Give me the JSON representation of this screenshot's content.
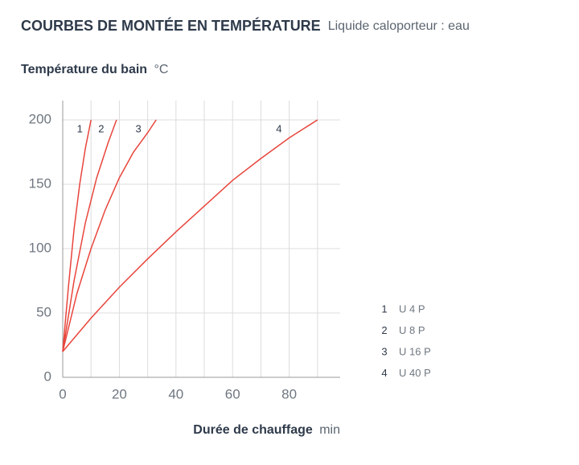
{
  "chart_data": {
    "type": "line",
    "title": "COURBES DE MONTÉE EN TEMPÉRATURE",
    "subtitle": "Liquide caloporteur : eau",
    "y_label": "Température du bain",
    "y_unit": "°C",
    "x_label": "Durée de chauffage",
    "x_unit": "min",
    "xlim": [
      0,
      98
    ],
    "xticks": [
      0,
      20,
      40,
      60,
      80
    ],
    "x_minor_ticks": [
      10,
      30,
      50,
      70,
      90
    ],
    "ylim": [
      0,
      215
    ],
    "yticks": [
      0,
      50,
      100,
      150,
      200
    ],
    "grid": true,
    "series": [
      {
        "label": "1",
        "name": "U 4 P",
        "color": "#e8453c",
        "x": [
          0,
          2,
          4,
          6,
          8,
          10
        ],
        "values": [
          20,
          70,
          115,
          150,
          178,
          200
        ]
      },
      {
        "label": "2",
        "name": "U 8 P",
        "color": "#e8453c",
        "x": [
          0,
          4,
          8,
          12,
          16,
          19
        ],
        "values": [
          20,
          75,
          120,
          155,
          182,
          200
        ]
      },
      {
        "label": "3",
        "name": "U 16 P",
        "color": "#e8453c",
        "x": [
          0,
          5,
          10,
          15,
          20,
          25,
          30,
          33
        ],
        "values": [
          20,
          65,
          100,
          130,
          155,
          175,
          190,
          200
        ]
      },
      {
        "label": "4",
        "name": "U 40 P",
        "color": "#e8453c",
        "x": [
          0,
          10,
          20,
          30,
          40,
          50,
          60,
          70,
          80,
          90
        ],
        "values": [
          20,
          46,
          70,
          92,
          113,
          133,
          153,
          170,
          186,
          200
        ]
      }
    ]
  }
}
